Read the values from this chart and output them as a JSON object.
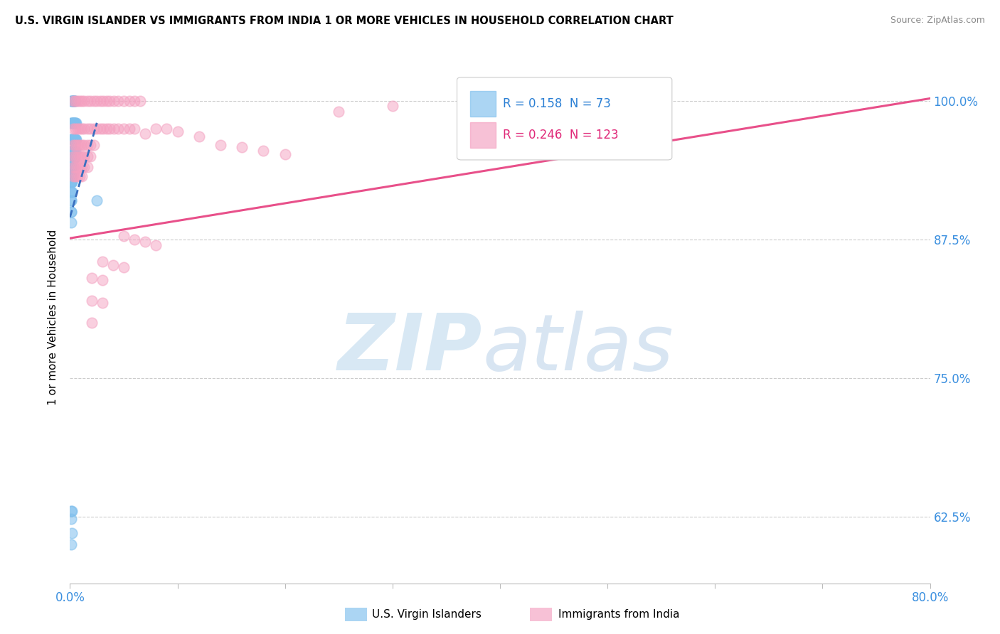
{
  "title": "U.S. VIRGIN ISLANDER VS IMMIGRANTS FROM INDIA 1 OR MORE VEHICLES IN HOUSEHOLD CORRELATION CHART",
  "source": "Source: ZipAtlas.com",
  "ylabel": "1 or more Vehicles in Household",
  "ytick_labels": [
    "100.0%",
    "87.5%",
    "75.0%",
    "62.5%"
  ],
  "ytick_values": [
    1.0,
    0.875,
    0.75,
    0.625
  ],
  "xmin": 0.0,
  "xmax": 0.8,
  "ymin": 0.565,
  "ymax": 1.045,
  "blue_R": "0.158",
  "blue_N": "73",
  "pink_R": "0.246",
  "pink_N": "123",
  "blue_color": "#7fbfed",
  "pink_color": "#f4a0c0",
  "blue_line_color": "#3a6fbf",
  "pink_line_color": "#e8508a",
  "watermark_zip": "ZIP",
  "watermark_atlas": "atlas",
  "legend_blue": "U.S. Virgin Islanders",
  "legend_pink": "Immigrants from India",
  "blue_scatter_x": [
    0.001,
    0.002,
    0.002,
    0.003,
    0.003,
    0.003,
    0.004,
    0.004,
    0.004,
    0.005,
    0.001,
    0.002,
    0.002,
    0.003,
    0.003,
    0.004,
    0.004,
    0.005,
    0.005,
    0.006,
    0.001,
    0.002,
    0.002,
    0.003,
    0.003,
    0.004,
    0.004,
    0.005,
    0.005,
    0.006,
    0.001,
    0.002,
    0.002,
    0.003,
    0.003,
    0.004,
    0.004,
    0.005,
    0.001,
    0.002,
    0.002,
    0.003,
    0.003,
    0.004,
    0.001,
    0.002,
    0.002,
    0.003,
    0.003,
    0.001,
    0.001,
    0.002,
    0.002,
    0.003,
    0.001,
    0.001,
    0.002,
    0.002,
    0.001,
    0.001,
    0.002,
    0.001,
    0.001,
    0.001,
    0.001,
    0.001,
    0.025,
    0.001,
    0.002,
    0.001,
    0.002,
    0.001
  ],
  "blue_scatter_y": [
    1.0,
    1.0,
    1.0,
    1.0,
    1.0,
    1.0,
    1.0,
    1.0,
    1.0,
    1.0,
    0.98,
    0.98,
    0.98,
    0.98,
    0.98,
    0.98,
    0.98,
    0.98,
    0.98,
    0.98,
    0.965,
    0.965,
    0.965,
    0.965,
    0.965,
    0.965,
    0.965,
    0.965,
    0.965,
    0.965,
    0.955,
    0.955,
    0.955,
    0.955,
    0.955,
    0.955,
    0.955,
    0.955,
    0.948,
    0.948,
    0.948,
    0.948,
    0.948,
    0.948,
    0.94,
    0.94,
    0.94,
    0.94,
    0.94,
    0.933,
    0.933,
    0.933,
    0.933,
    0.933,
    0.927,
    0.927,
    0.927,
    0.927,
    0.918,
    0.918,
    0.918,
    0.91,
    0.91,
    0.9,
    0.9,
    0.89,
    0.91,
    0.63,
    0.63,
    0.623,
    0.61,
    0.6
  ],
  "pink_scatter_x": [
    0.003,
    0.005,
    0.007,
    0.009,
    0.011,
    0.013,
    0.016,
    0.019,
    0.022,
    0.025,
    0.028,
    0.031,
    0.034,
    0.037,
    0.041,
    0.045,
    0.05,
    0.055,
    0.06,
    0.065,
    0.003,
    0.005,
    0.007,
    0.009,
    0.011,
    0.013,
    0.016,
    0.019,
    0.022,
    0.025,
    0.028,
    0.031,
    0.034,
    0.037,
    0.041,
    0.045,
    0.05,
    0.055,
    0.06,
    0.003,
    0.005,
    0.007,
    0.009,
    0.011,
    0.013,
    0.016,
    0.019,
    0.022,
    0.003,
    0.005,
    0.007,
    0.009,
    0.011,
    0.013,
    0.016,
    0.019,
    0.003,
    0.005,
    0.007,
    0.009,
    0.011,
    0.013,
    0.016,
    0.003,
    0.005,
    0.007,
    0.009,
    0.011,
    0.07,
    0.08,
    0.09,
    0.1,
    0.12,
    0.14,
    0.16,
    0.18,
    0.2,
    0.05,
    0.06,
    0.07,
    0.08,
    0.03,
    0.04,
    0.05,
    0.02,
    0.03,
    0.02,
    0.03,
    0.02,
    0.38,
    0.25,
    0.3
  ],
  "pink_scatter_y": [
    1.0,
    1.0,
    1.0,
    1.0,
    1.0,
    1.0,
    1.0,
    1.0,
    1.0,
    1.0,
    1.0,
    1.0,
    1.0,
    1.0,
    1.0,
    1.0,
    1.0,
    1.0,
    1.0,
    1.0,
    0.975,
    0.975,
    0.975,
    0.975,
    0.975,
    0.975,
    0.975,
    0.975,
    0.975,
    0.975,
    0.975,
    0.975,
    0.975,
    0.975,
    0.975,
    0.975,
    0.975,
    0.975,
    0.975,
    0.96,
    0.96,
    0.96,
    0.96,
    0.96,
    0.96,
    0.96,
    0.96,
    0.96,
    0.95,
    0.95,
    0.95,
    0.95,
    0.95,
    0.95,
    0.95,
    0.95,
    0.94,
    0.94,
    0.94,
    0.94,
    0.94,
    0.94,
    0.94,
    0.932,
    0.932,
    0.932,
    0.932,
    0.932,
    0.97,
    0.975,
    0.975,
    0.972,
    0.968,
    0.96,
    0.958,
    0.955,
    0.952,
    0.878,
    0.875,
    0.873,
    0.87,
    0.855,
    0.852,
    0.85,
    0.84,
    0.838,
    0.82,
    0.818,
    0.8,
    1.0,
    0.99,
    0.995
  ]
}
